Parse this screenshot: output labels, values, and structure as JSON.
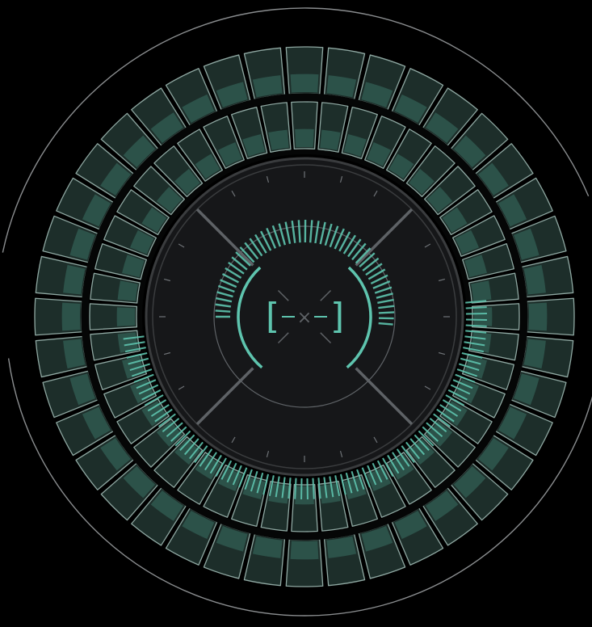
{
  "colors": {
    "background": "#000000",
    "outer_arc": "#8a8d8f",
    "cell_fill": "#1d2e2a",
    "cell_fill_light": "#2f584f",
    "cell_stroke": "#8fa8a2",
    "ring_dark": "#050606",
    "core_fill": "#161719",
    "core_ring": "#3a3c3e",
    "accent": "#5ec4ae",
    "crosshair": "#5e6266",
    "tick": "#6f7377"
  },
  "hud": {
    "outer_cells": 40,
    "inner_cells": 44,
    "dial_segments": 48,
    "accent_ticks": 44,
    "bracket_left": "[",
    "bracket_right": "]",
    "center_glyph": "×"
  }
}
